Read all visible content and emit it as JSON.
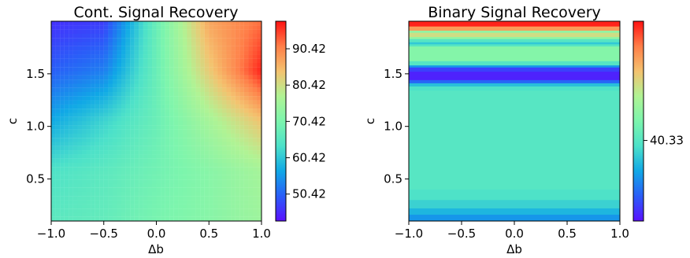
{
  "colormap": [
    "#5a10ff",
    "#2a5df8",
    "#10a8e6",
    "#4ce1c9",
    "#7cf5ad",
    "#b0f394",
    "#f4c26f",
    "#ff7e48",
    "#ff1212"
  ],
  "chart_data": [
    {
      "type": "heatmap",
      "title": "Cont. Signal Recovery",
      "xlabel": "Δb",
      "ylabel": "c",
      "xlim": [
        -1.0,
        1.0
      ],
      "ylim": [
        0.1,
        2.0
      ],
      "x_ticks": [
        -1.0,
        -0.5,
        0.0,
        0.5,
        1.0
      ],
      "x_tick_labels": [
        "−1.0",
        "−0.5",
        "0.0",
        "0.5",
        "1.0"
      ],
      "y_ticks": [
        0.5,
        1.0,
        1.5
      ],
      "y_tick_labels": [
        "0.5",
        "1.0",
        "1.5"
      ],
      "colorbar": {
        "range": [
          43.0,
          98.0
        ],
        "ticks": [
          50.42,
          60.42,
          70.42,
          80.42,
          90.42
        ],
        "tick_labels": [
          "50.42",
          "60.42",
          "70.42",
          "80.42",
          "90.42"
        ]
      },
      "grid": {
        "x": [
          -1.0,
          -0.5,
          0.0,
          0.5,
          1.0
        ],
        "y": [
          2.0,
          1.5,
          1.0,
          0.5,
          0.1
        ],
        "values": [
          [
            46.0,
            47.0,
            68.0,
            87.0,
            92.0
          ],
          [
            50.0,
            53.0,
            68.0,
            83.0,
            97.0
          ],
          [
            57.0,
            62.0,
            68.0,
            76.0,
            84.0
          ],
          [
            64.0,
            66.0,
            69.0,
            72.0,
            76.0
          ],
          [
            66.0,
            67.0,
            70.0,
            72.0,
            75.0
          ]
        ]
      }
    },
    {
      "type": "heatmap",
      "title": "Binary Signal Recovery",
      "xlabel": "Δb",
      "ylabel": "c",
      "xlim": [
        -1.0,
        1.0
      ],
      "ylim": [
        0.1,
        2.0
      ],
      "x_ticks": [
        -1.0,
        -0.5,
        0.0,
        0.5,
        1.0
      ],
      "x_tick_labels": [
        "−1.0",
        "−0.5",
        "0.0",
        "0.5",
        "1.0"
      ],
      "y_ticks": [
        0.5,
        1.0,
        1.5
      ],
      "y_tick_labels": [
        "0.5",
        "1.0",
        "1.5"
      ],
      "colorbar": {
        "range": [
          0.0,
          100.0
        ],
        "ticks": [
          40.33
        ],
        "tick_labels": [
          "40.33"
        ]
      },
      "bands": [
        {
          "c_from": 1.95,
          "c_to": 2.0,
          "value": 98
        },
        {
          "c_from": 1.91,
          "c_to": 1.95,
          "value": 82
        },
        {
          "c_from": 1.89,
          "c_to": 1.91,
          "value": 55
        },
        {
          "c_from": 1.85,
          "c_to": 1.89,
          "value": 68
        },
        {
          "c_from": 1.83,
          "c_to": 1.85,
          "value": 55
        },
        {
          "c_from": 1.8,
          "c_to": 1.83,
          "value": 40
        },
        {
          "c_from": 1.78,
          "c_to": 1.8,
          "value": 32
        },
        {
          "c_from": 1.76,
          "c_to": 1.78,
          "value": 40
        },
        {
          "c_from": 1.62,
          "c_to": 1.76,
          "value": 52
        },
        {
          "c_from": 1.58,
          "c_to": 1.62,
          "value": 40
        },
        {
          "c_from": 1.56,
          "c_to": 1.58,
          "value": 22
        },
        {
          "c_from": 1.52,
          "c_to": 1.56,
          "value": 8
        },
        {
          "c_from": 1.44,
          "c_to": 1.52,
          "value": 3
        },
        {
          "c_from": 1.41,
          "c_to": 1.44,
          "value": 14
        },
        {
          "c_from": 1.38,
          "c_to": 1.41,
          "value": 30
        },
        {
          "c_from": 1.34,
          "c_to": 1.38,
          "value": 38
        },
        {
          "c_from": 0.4,
          "c_to": 1.34,
          "value": 40.33
        },
        {
          "c_from": 0.3,
          "c_to": 0.4,
          "value": 38
        },
        {
          "c_from": 0.22,
          "c_to": 0.3,
          "value": 34
        },
        {
          "c_from": 0.16,
          "c_to": 0.22,
          "value": 28
        },
        {
          "c_from": 0.1,
          "c_to": 0.16,
          "value": 22
        }
      ]
    }
  ]
}
